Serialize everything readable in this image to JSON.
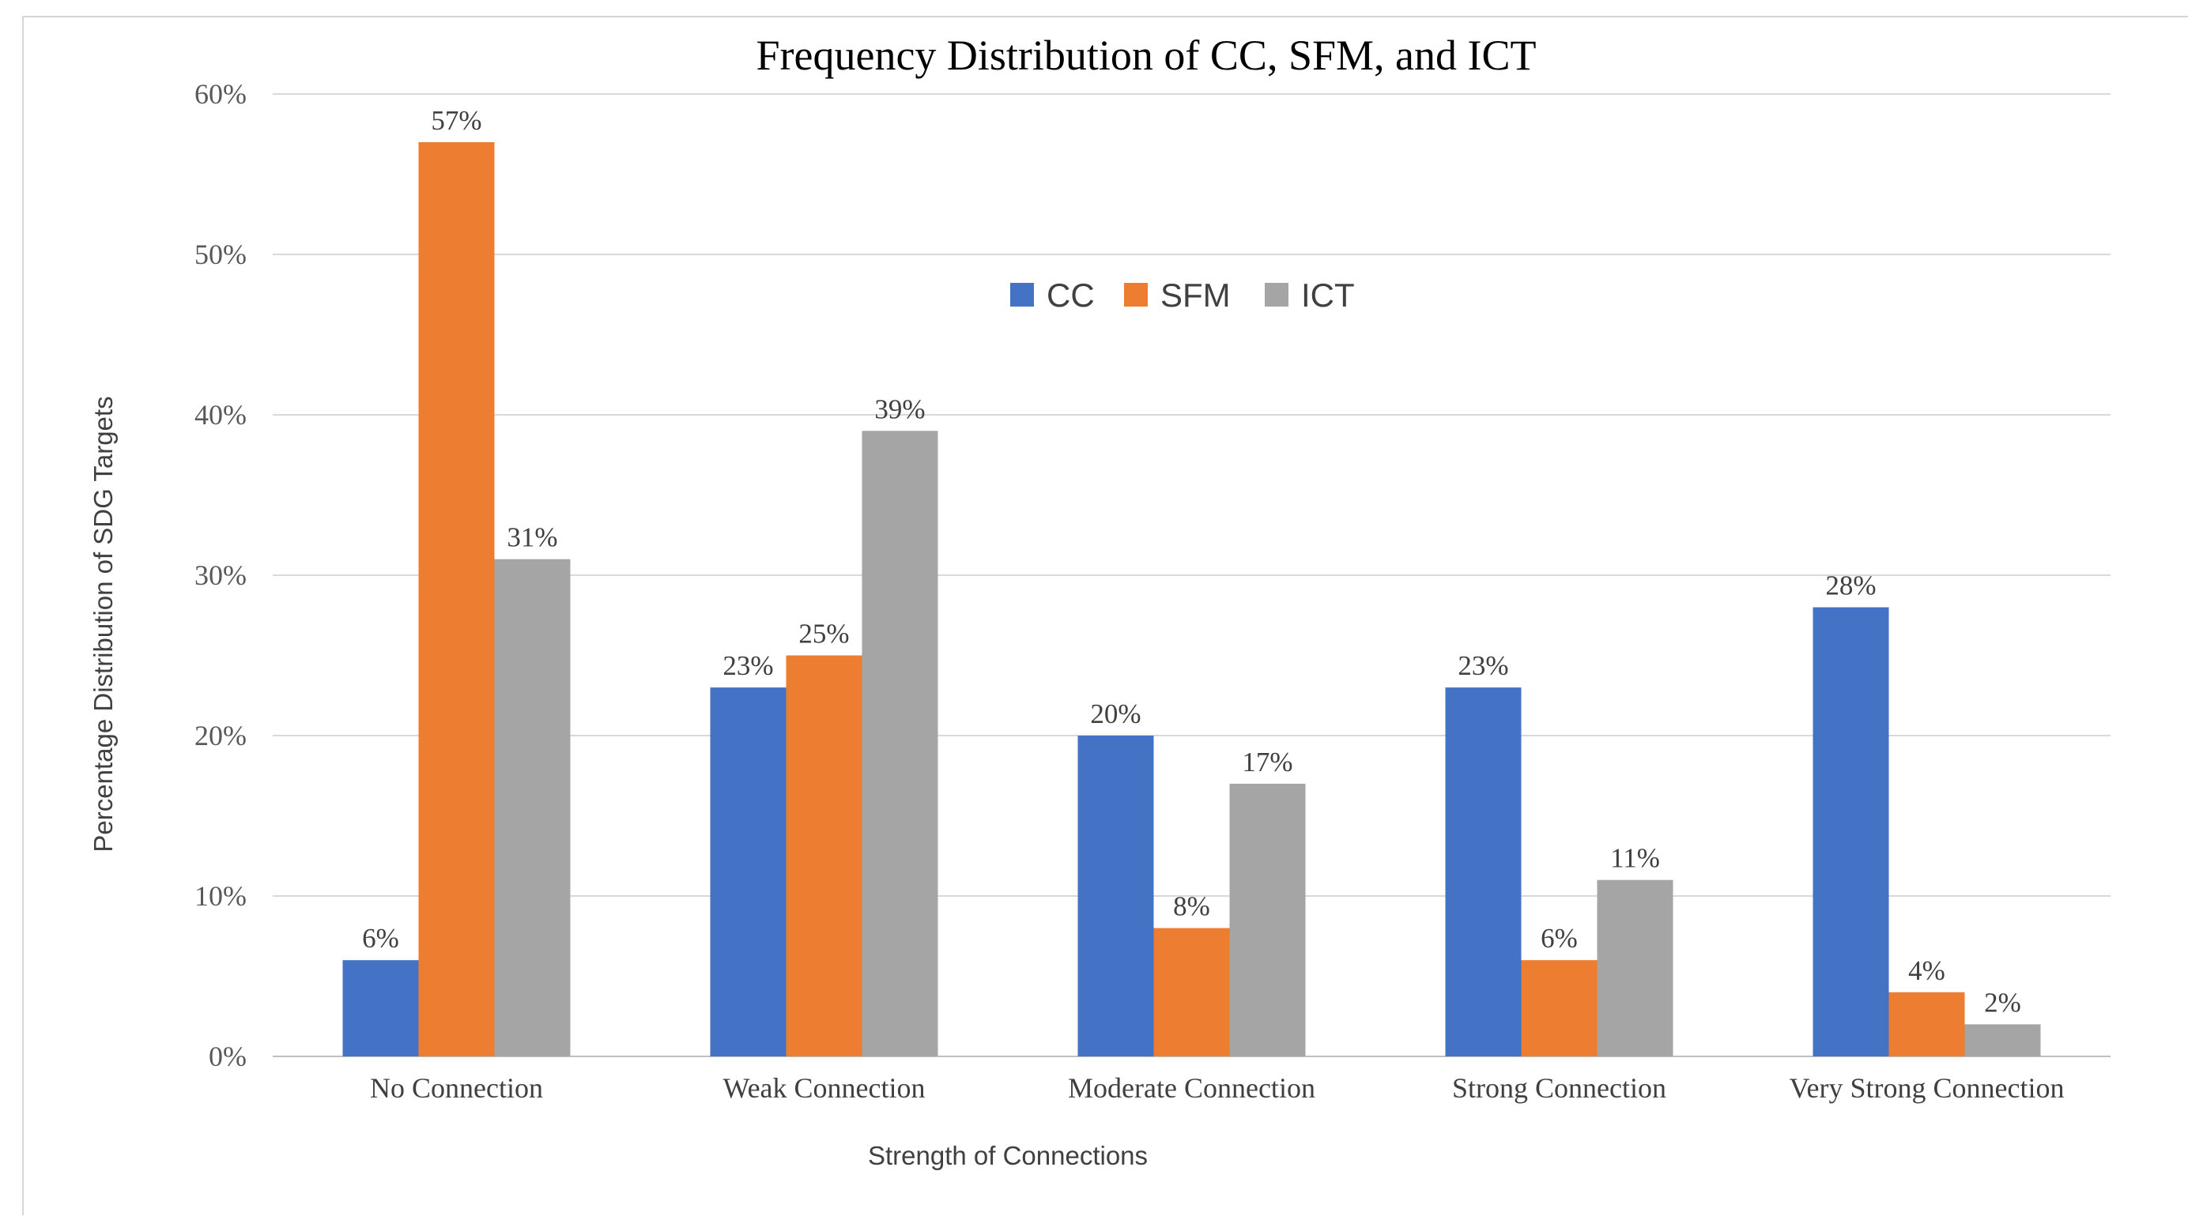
{
  "chart_data": {
    "type": "bar",
    "title": "Frequency Distribution of CC, SFM, and ICT",
    "xlabel": "Strength of Connections",
    "ylabel": "Percentage Distribution of SDG Targets",
    "ylim": [
      0,
      60
    ],
    "yticks": [
      0,
      10,
      20,
      30,
      40,
      50,
      60
    ],
    "ytick_labels": [
      "0%",
      "10%",
      "20%",
      "30%",
      "40%",
      "50%",
      "60%"
    ],
    "grid": true,
    "legend_position": "upper-center",
    "categories": [
      "No Connection",
      "Weak Connection",
      "Moderate Connection",
      "Strong Connection",
      "Very Strong Connection"
    ],
    "series": [
      {
        "name": "CC",
        "color": "#4472c4",
        "values": [
          6,
          23,
          20,
          23,
          28
        ],
        "labels": [
          "6%",
          "23%",
          "20%",
          "23%",
          "28%"
        ]
      },
      {
        "name": "SFM",
        "color": "#ed7d31",
        "values": [
          57,
          25,
          8,
          6,
          4
        ],
        "labels": [
          "57%",
          "25%",
          "8%",
          "6%",
          "4%"
        ]
      },
      {
        "name": "ICT",
        "color": "#a5a5a5",
        "values": [
          31,
          39,
          17,
          11,
          2
        ],
        "labels": [
          "31%",
          "39%",
          "17%",
          "11%",
          "2%"
        ]
      }
    ]
  }
}
